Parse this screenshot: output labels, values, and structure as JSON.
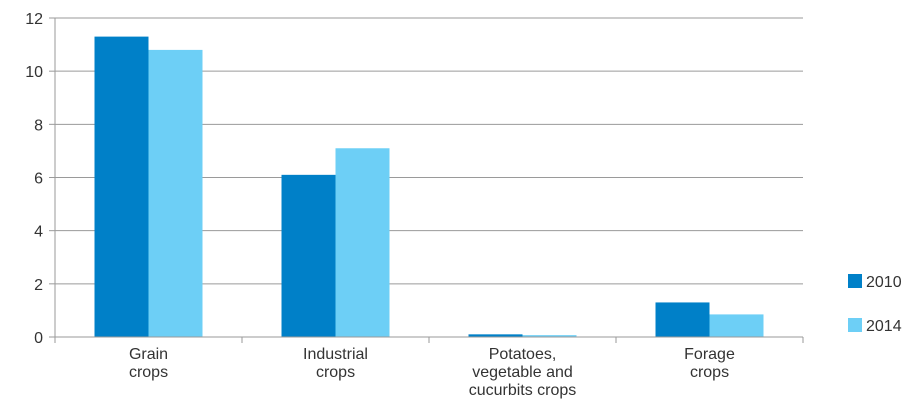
{
  "chart_data": {
    "type": "bar",
    "categories": [
      [
        "Grain",
        "crops"
      ],
      [
        "Industrial",
        "crops"
      ],
      [
        "Potatoes,",
        "vegetable and",
        "cucurbits crops"
      ],
      [
        "Forage",
        "crops"
      ]
    ],
    "series": [
      {
        "name": "2010",
        "color": "#0080C8",
        "values": [
          11.3,
          6.1,
          0.1,
          1.3
        ]
      },
      {
        "name": "2014",
        "color": "#6DCFF6",
        "values": [
          10.8,
          7.1,
          0.07,
          0.85
        ]
      }
    ],
    "ylim": [
      0,
      12
    ],
    "yticks": [
      "0",
      "2",
      "4",
      "6",
      "8",
      "10",
      "12"
    ],
    "grid": true,
    "legend_position": "right"
  }
}
